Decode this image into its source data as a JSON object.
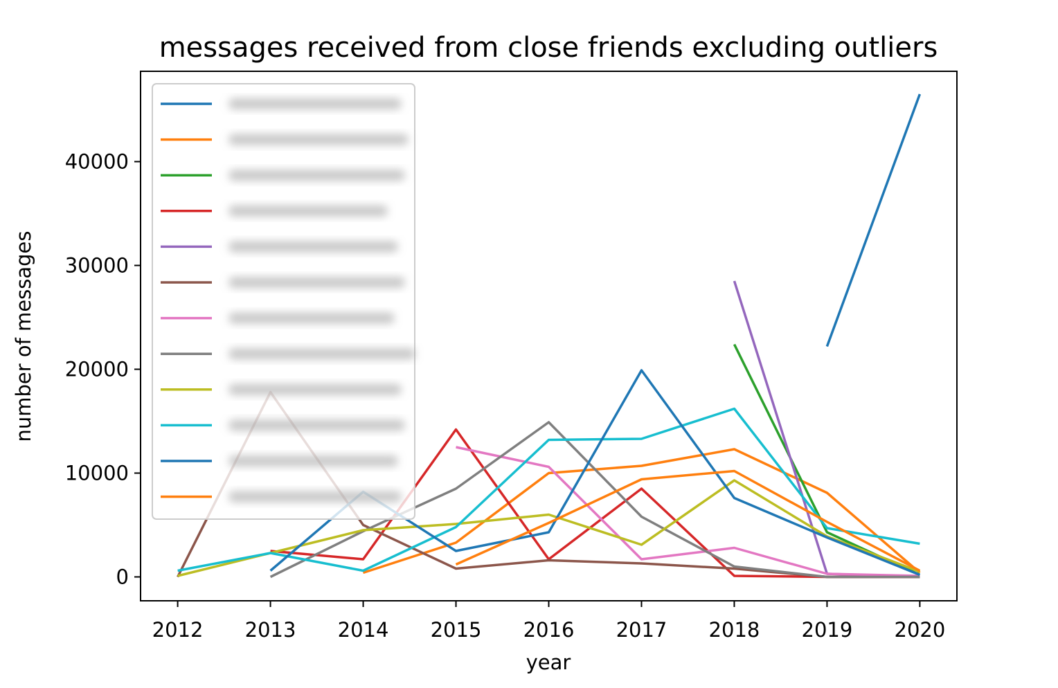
{
  "chart_data": {
    "type": "line",
    "title": "messages received from close friends excluding outliers",
    "xlabel": "year",
    "ylabel": "number of messages",
    "x": [
      2012,
      2013,
      2014,
      2015,
      2016,
      2017,
      2018,
      2019,
      2020
    ],
    "xlim": [
      2011.6,
      2020.4
    ],
    "ylim": [
      -2300,
      48700
    ],
    "yticks": [
      0,
      10000,
      20000,
      30000,
      40000
    ],
    "grid": false,
    "legend": {
      "placement": "upper-left",
      "labels_visible": false,
      "colors": [
        "#1f77b4",
        "#ff7f0e",
        "#2ca02c",
        "#d62728",
        "#9467bd",
        "#8c564b",
        "#e377c2",
        "#7f7f7f",
        "#bcbd22",
        "#17becf",
        "#1f77b4",
        "#ff7f0e"
      ]
    },
    "series": [
      {
        "color": "#1f77b4",
        "values": [
          null,
          null,
          null,
          null,
          null,
          null,
          null,
          22200,
          46500
        ]
      },
      {
        "color": "#ff7f0e",
        "values": [
          null,
          null,
          400,
          3300,
          10000,
          10700,
          12300,
          8100,
          400
        ]
      },
      {
        "color": "#2ca02c",
        "values": [
          null,
          null,
          null,
          null,
          null,
          null,
          22400,
          4300,
          200
        ]
      },
      {
        "color": "#d62728",
        "values": [
          null,
          2500,
          1700,
          14200,
          1700,
          8500,
          100,
          0,
          0
        ]
      },
      {
        "color": "#9467bd",
        "values": [
          null,
          null,
          null,
          null,
          null,
          null,
          28500,
          300,
          0
        ]
      },
      {
        "color": "#8c564b",
        "values": [
          0,
          17800,
          5000,
          800,
          1600,
          1300,
          800,
          0,
          0
        ]
      },
      {
        "color": "#e377c2",
        "values": [
          null,
          null,
          null,
          12500,
          10600,
          1700,
          2800,
          300,
          100
        ]
      },
      {
        "color": "#7f7f7f",
        "values": [
          null,
          0,
          4400,
          8500,
          14900,
          5800,
          1000,
          0,
          0
        ]
      },
      {
        "color": "#bcbd22",
        "values": [
          100,
          2300,
          4500,
          5100,
          6000,
          3100,
          9300,
          3900,
          500
        ]
      },
      {
        "color": "#17becf",
        "values": [
          600,
          2300,
          600,
          4800,
          13200,
          13300,
          16200,
          4700,
          3200
        ]
      },
      {
        "color": "#1f77b4",
        "values": [
          null,
          600,
          8200,
          2500,
          4300,
          19900,
          7600,
          3800,
          200
        ]
      },
      {
        "color": "#ff7f0e",
        "values": [
          null,
          null,
          null,
          1200,
          5200,
          9400,
          10200,
          5300,
          600
        ]
      }
    ]
  }
}
